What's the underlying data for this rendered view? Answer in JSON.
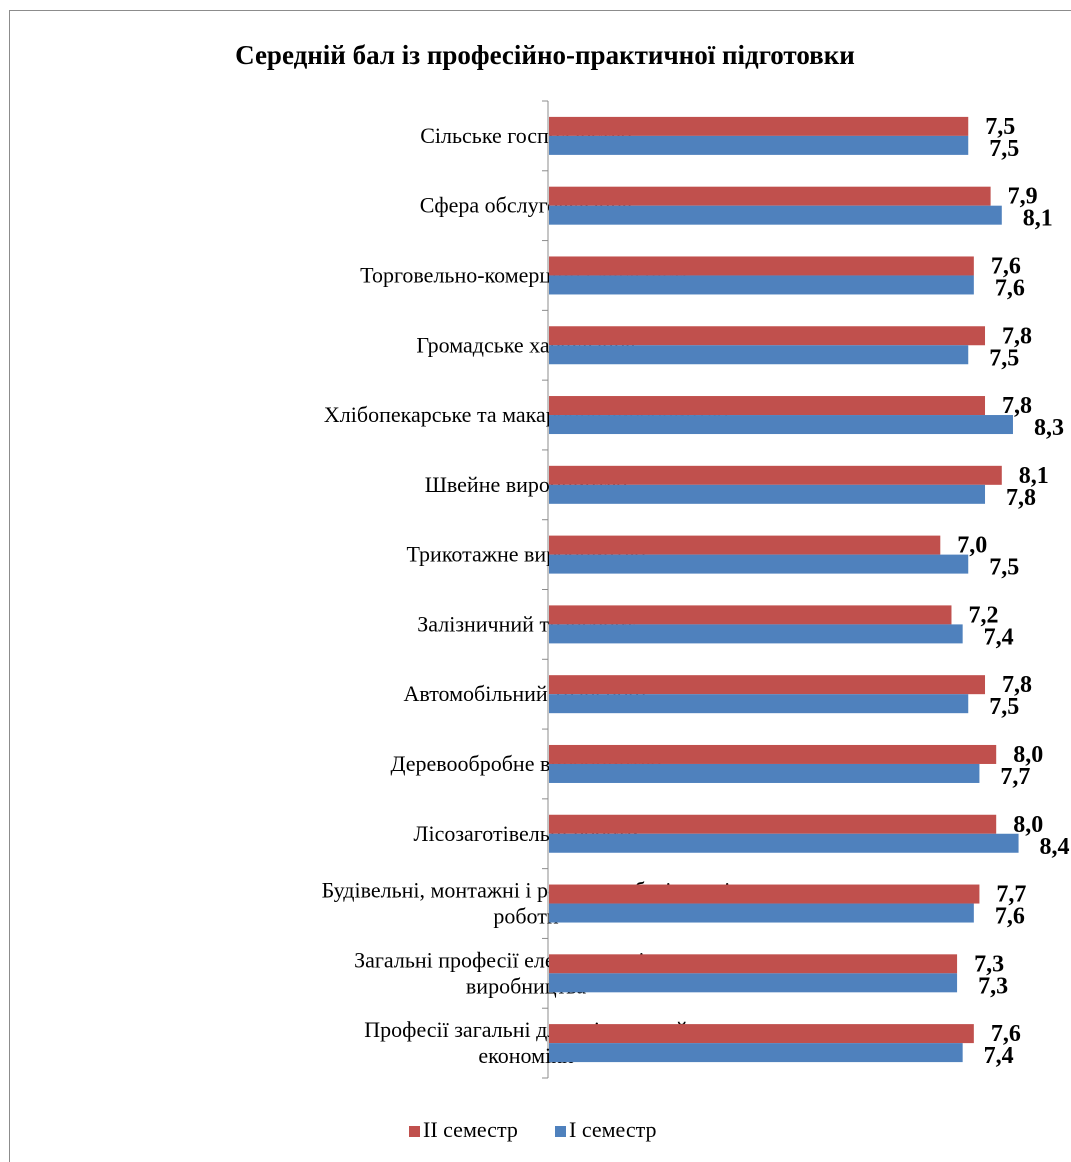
{
  "chart_data": {
    "type": "bar",
    "orientation": "horizontal",
    "title": "Середній бал із професійно-практичної підготовки",
    "categories": [
      "Сільське господарство",
      "Сфера обслуговування",
      "Торговельно-комерційна діяльність",
      "Громадське харчування",
      "Хлібопекарське та макаронне виробництво",
      "Швейне виробництво",
      "Трикотажне виробництво",
      "Залізничний транспорт",
      "Автомобільний транспорт",
      "Деревообробне виробництво",
      "Лісозаготівельні роботи",
      "Будівельні, монтажні і ремонтно-будівельні роботи",
      "Загальні професії електротехнічного виробництва",
      "Професії загальні для всіх галузей економіки"
    ],
    "category_lines": [
      [
        "Сільське господарство"
      ],
      [
        "Сфера обслуговування"
      ],
      [
        "Торговельно-комерційна діяльність"
      ],
      [
        "Громадське харчування"
      ],
      [
        "Хлібопекарське та макаронне виробництво"
      ],
      [
        "Швейне виробництво"
      ],
      [
        "Трикотажне виробництво"
      ],
      [
        "Залізничний транспорт"
      ],
      [
        "Автомобільний транспорт"
      ],
      [
        "Деревообробне виробництво"
      ],
      [
        "Лісозаготівельні роботи"
      ],
      [
        "Будівельні, монтажні і ремонтно-будівельні",
        "роботи"
      ],
      [
        "Загальні професії електротехнічного",
        "виробництва"
      ],
      [
        "Професії загальні для всіх галузей",
        "економіки"
      ]
    ],
    "series": [
      {
        "name": "II семестр",
        "color": "#c0504d",
        "values": [
          7.5,
          7.9,
          7.6,
          7.8,
          7.8,
          8.1,
          7.0,
          7.2,
          7.8,
          8.0,
          8.0,
          7.7,
          7.3,
          7.6
        ],
        "labels": [
          "7,5",
          "7,9",
          "7,6",
          "7,8",
          "7,8",
          "8,1",
          "7,0",
          "7,2",
          "7,8",
          "8,0",
          "8,0",
          "7,7",
          "7,3",
          "7,6"
        ]
      },
      {
        "name": "I семестр",
        "color": "#4f81bd",
        "values": [
          7.5,
          8.1,
          7.6,
          7.5,
          8.3,
          7.8,
          7.5,
          7.4,
          7.5,
          7.7,
          8.4,
          7.6,
          7.3,
          7.4
        ],
        "labels": [
          "7,5",
          "8,1",
          "7,6",
          "7,5",
          "8,3",
          "7,8",
          "7,5",
          "7,4",
          "7,5",
          "7,7",
          "8,4",
          "7,6",
          "7,3",
          "7,4"
        ]
      }
    ],
    "xlim": [
      0,
      9
    ],
    "grid": false,
    "legend_position": "bottom"
  }
}
